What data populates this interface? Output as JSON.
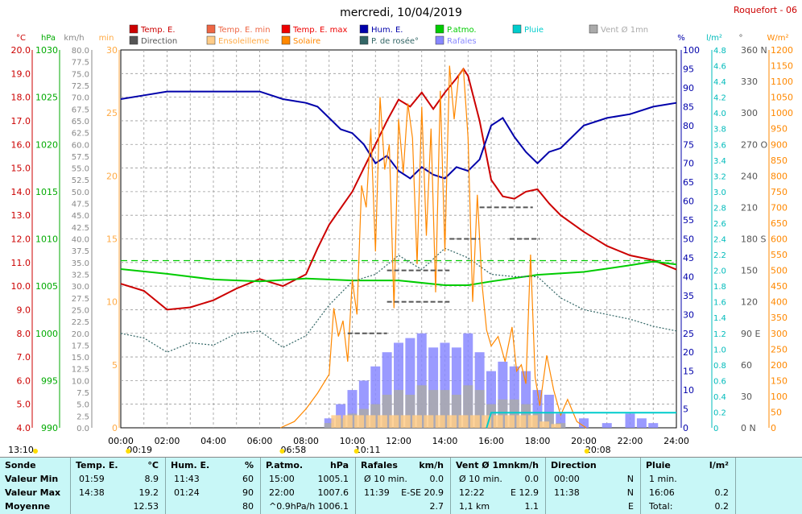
{
  "title": "mercredi, 10/04/2019",
  "station": "Roquefort - 06",
  "legend": [
    {
      "label": "Temp. E.",
      "color": "#cc0000"
    },
    {
      "label": "Temp. E. min",
      "color": "#ee6644"
    },
    {
      "label": "Temp. E. max",
      "color": "#ee0000"
    },
    {
      "label": "Hum. E.",
      "color": "#0000aa"
    },
    {
      "label": "P.atmo.",
      "color": "#00cc00"
    },
    {
      "label": "Pluie",
      "color": "#00cccc"
    },
    {
      "label": "Vent Ø 1mn",
      "color": "#aaaaaa"
    },
    {
      "label": "Direction",
      "color": "#555555"
    },
    {
      "label": "Ensoleilleme",
      "color": "#ffcc88"
    },
    {
      "label": "Solaire",
      "color": "#ff8800"
    },
    {
      "label": "P. de rosée°",
      "color": "#336666"
    },
    {
      "label": "Rafales",
      "color": "#8888ff"
    }
  ],
  "axes": {
    "temp": {
      "unit": "°C",
      "ticks": [
        "20.0",
        "19.0",
        "18.0",
        "17.0",
        "16.0",
        "15.0",
        "14.0",
        "13.0",
        "12.0",
        "11.0",
        "10.0",
        "9.0",
        "8.0",
        "7.0",
        "6.0",
        "5.0",
        "4.0"
      ],
      "color": "#cc0000"
    },
    "press": {
      "unit": "hPa",
      "ticks": [
        "1030",
        "1025",
        "1020",
        "1015",
        "1010",
        "1005",
        "1000",
        "995",
        "990"
      ],
      "color": "#00aa00"
    },
    "wind": {
      "unit": "km/h",
      "ticks": [
        "80.0",
        "77.5",
        "75.0",
        "72.5",
        "70.0",
        "67.5",
        "65.0",
        "62.5",
        "60.0",
        "57.5",
        "55.0",
        "52.5",
        "50.0",
        "47.5",
        "45.0",
        "42.5",
        "40.0",
        "37.5",
        "35.0",
        "32.5",
        "30.0",
        "27.5",
        "25.0",
        "22.5",
        "20.0",
        "17.5",
        "15.0",
        "12.5",
        "10.0",
        "7.5",
        "5.0",
        "2.5",
        "0.0"
      ],
      "color": "#888888"
    },
    "min": {
      "unit": "min",
      "ticks": [
        "30",
        "25",
        "20",
        "15",
        "10",
        "5",
        "0"
      ],
      "color": "#ffaa44"
    },
    "hum": {
      "unit": "%",
      "ticks": [
        "100",
        "95",
        "90",
        "85",
        "80",
        "75",
        "70",
        "65",
        "60",
        "55",
        "50",
        "45",
        "40",
        "35",
        "30",
        "25",
        "20",
        "15",
        "10",
        "5",
        "0"
      ],
      "color": "#0000aa"
    },
    "rain": {
      "unit": "l/m²",
      "ticks": [
        "4.8",
        "4.6",
        "4.4",
        "4.2",
        "4.0",
        "3.8",
        "3.6",
        "3.4",
        "3.2",
        "3.0",
        "2.8",
        "2.6",
        "2.4",
        "2.2",
        "2.0",
        "1.8",
        "1.6",
        "1.4",
        "1.2",
        "1.0",
        "0.8",
        "0.6",
        "0.4",
        "0.2",
        "0"
      ],
      "color": "#00bbbb"
    },
    "dir": {
      "unit": "°",
      "ticks": [
        "360 N",
        "330",
        "300",
        "270 O",
        "240",
        "210",
        "180 S",
        "150",
        "120",
        "90 E",
        "60",
        "30",
        "0 N"
      ],
      "color": "#555555"
    },
    "solar": {
      "unit": "W/m²",
      "ticks": [
        "1200",
        "1150",
        "1100",
        "1050",
        "1000",
        "950",
        "900",
        "850",
        "800",
        "750",
        "700",
        "650",
        "600",
        "550",
        "500",
        "450",
        "400",
        "350",
        "300",
        "250",
        "200",
        "150",
        "100",
        "50",
        "0"
      ],
      "color": "#ff8800"
    }
  },
  "time_labels": [
    "00:00",
    "02:00",
    "04:00",
    "06:00",
    "08:00",
    "10:00",
    "12:00",
    "14:00",
    "16:00",
    "18:00",
    "20:00",
    "22:00",
    "24:00"
  ],
  "time_marks": [
    {
      "label": "13:10",
      "hour": -1.2
    },
    {
      "label": "00:19",
      "hour": 0.32
    },
    {
      "label": "06:58",
      "hour": 6.97
    },
    {
      "label": "10:11",
      "hour": 10.18
    },
    {
      "label": "20:08",
      "hour": 20.13
    }
  ],
  "chart_data": {
    "type": "line",
    "x_unit": "hour",
    "xlim": [
      0,
      24
    ],
    "series": [
      {
        "name": "Temp. E.",
        "axis": "temp",
        "color": "#cc0000",
        "x": [
          0,
          1,
          2,
          3,
          4,
          5,
          6,
          7,
          8,
          8.5,
          9,
          9.5,
          10,
          10.5,
          11,
          11.5,
          12,
          12.5,
          13,
          13.5,
          14,
          14.5,
          14.8,
          15,
          15.5,
          16,
          16.5,
          17,
          17.5,
          18,
          18.5,
          19,
          20,
          21,
          22,
          23,
          24
        ],
        "y": [
          10.1,
          9.8,
          9.0,
          9.1,
          9.4,
          9.9,
          10.3,
          10.0,
          10.5,
          11.6,
          12.6,
          13.3,
          14.0,
          15.0,
          16.0,
          17.0,
          17.9,
          17.6,
          18.2,
          17.5,
          18.2,
          18.8,
          19.2,
          18.9,
          17.0,
          14.5,
          13.8,
          13.7,
          14.0,
          14.1,
          13.5,
          13.0,
          12.3,
          11.7,
          11.3,
          11.1,
          10.7
        ]
      },
      {
        "name": "Hum. E.",
        "axis": "hum",
        "color": "#0000aa",
        "x": [
          0,
          1,
          2,
          3,
          4,
          5,
          6,
          7,
          8,
          8.5,
          9,
          9.5,
          10,
          10.5,
          11,
          11.5,
          12,
          12.5,
          13,
          13.5,
          14,
          14.5,
          15,
          15.5,
          16,
          16.5,
          17,
          17.5,
          18,
          18.5,
          19,
          20,
          21,
          22,
          23,
          24
        ],
        "y": [
          87,
          88,
          89,
          89,
          89,
          89,
          89,
          87,
          86,
          85,
          82,
          79,
          78,
          75,
          70,
          72,
          68,
          66,
          69,
          67,
          66,
          69,
          68,
          71,
          80,
          82,
          77,
          73,
          70,
          73,
          74,
          80,
          82,
          83,
          85,
          86
        ]
      },
      {
        "name": "P.atmo.",
        "axis": "press",
        "color": "#00cc00",
        "x": [
          0,
          2,
          4,
          6,
          8,
          10,
          12,
          14,
          15,
          16,
          18,
          20,
          22,
          23,
          24
        ],
        "y": [
          1006.8,
          1006.3,
          1005.7,
          1005.5,
          1005.8,
          1005.6,
          1005.6,
          1005.1,
          1005.1,
          1005.5,
          1006.2,
          1006.5,
          1007.2,
          1007.6,
          1007.3
        ]
      },
      {
        "name": "P. de rosée°",
        "axis": "temp",
        "color": "#336666",
        "dotted": true,
        "x": [
          0,
          1,
          2,
          3,
          4,
          5,
          6,
          7,
          8,
          9,
          10,
          11,
          12,
          13,
          14,
          15,
          16,
          17,
          18,
          19,
          20,
          21,
          22,
          23,
          24
        ],
        "y": [
          8.0,
          7.8,
          7.2,
          7.6,
          7.5,
          8.0,
          8.1,
          7.4,
          7.9,
          9.2,
          10.2,
          10.5,
          11.3,
          10.7,
          11.6,
          11.2,
          10.5,
          10.4,
          10.4,
          9.5,
          9.0,
          8.8,
          8.6,
          8.3,
          8.1
        ]
      },
      {
        "name": "Solaire",
        "axis": "solar",
        "color": "#ff8800",
        "x": [
          6.9,
          7.5,
          8,
          8.5,
          9,
          9.2,
          9.4,
          9.6,
          9.8,
          10,
          10.2,
          10.4,
          10.6,
          10.8,
          11,
          11.2,
          11.4,
          11.6,
          11.8,
          12,
          12.2,
          12.4,
          12.6,
          12.8,
          13,
          13.2,
          13.4,
          13.6,
          13.8,
          14,
          14.2,
          14.4,
          14.6,
          14.8,
          15,
          15.2,
          15.4,
          15.6,
          15.8,
          16,
          16.3,
          16.6,
          16.9,
          17.1,
          17.3,
          17.5,
          17.7,
          17.9,
          18.1,
          18.4,
          18.7,
          19,
          19.3,
          19.7,
          20.1
        ],
        "y": [
          0,
          20,
          60,
          110,
          170,
          380,
          290,
          340,
          210,
          470,
          360,
          770,
          700,
          950,
          560,
          1050,
          820,
          900,
          380,
          980,
          810,
          1030,
          920,
          520,
          1020,
          610,
          950,
          430,
          1070,
          560,
          1150,
          980,
          1120,
          1140,
          920,
          400,
          740,
          460,
          310,
          260,
          290,
          210,
          320,
          180,
          200,
          140,
          550,
          160,
          70,
          230,
          120,
          40,
          90,
          20,
          0
        ]
      },
      {
        "name": "Rafales",
        "axis": "wind",
        "color": "#8888ff",
        "bars": true,
        "x": [
          9.0,
          9.5,
          10.0,
          10.5,
          11.0,
          11.5,
          12.0,
          12.5,
          13.0,
          13.5,
          14.0,
          14.5,
          15.0,
          15.5,
          16.0,
          16.5,
          17.0,
          17.5,
          18.0,
          18.5,
          19.0,
          20.0,
          21.0,
          22.0,
          22.5,
          23.0
        ],
        "y": [
          2,
          5,
          8,
          10,
          13,
          16,
          18,
          19,
          20,
          17,
          18,
          17,
          20,
          16,
          12,
          14,
          13,
          12,
          8,
          7,
          3,
          2,
          1,
          3,
          2,
          1
        ]
      },
      {
        "name": "Vent Ø 1mn",
        "axis": "wind",
        "color": "#aaaaaa",
        "bars": true,
        "x": [
          9.0,
          9.5,
          10.0,
          10.5,
          11.0,
          11.5,
          12.0,
          12.5,
          13.0,
          13.5,
          14.0,
          14.5,
          15.0,
          15.5,
          16.0,
          16.5,
          17.0,
          17.5,
          18.0,
          18.5,
          19.0
        ],
        "y": [
          1,
          2,
          3,
          4,
          5,
          7,
          8,
          7,
          9,
          8,
          8,
          7,
          9,
          8,
          5,
          6,
          6,
          5,
          3,
          3,
          1
        ]
      },
      {
        "name": "Ensoleilleme",
        "axis": "min",
        "color": "#ffcc88",
        "bars": true,
        "x": [
          9.3,
          9.8,
          10.3,
          10.8,
          11.3,
          11.8,
          12.3,
          12.8,
          13.3,
          13.8,
          14.3,
          14.8,
          15.3,
          15.8,
          16.3,
          16.8,
          17.3,
          17.8,
          18.3,
          18.8
        ],
        "y": [
          1,
          1,
          1,
          1,
          1,
          1,
          1,
          1,
          1,
          1,
          1,
          1,
          1,
          1,
          1,
          1,
          1,
          1,
          0.5,
          0.3
        ]
      },
      {
        "name": "Pluie",
        "axis": "rain",
        "color": "#00cccc",
        "x": [
          15.8,
          16.0,
          24.0
        ],
        "y": [
          0,
          0.2,
          0.2
        ]
      },
      {
        "name": "Direction",
        "axis": "dir",
        "color": "#555555",
        "dashes": true,
        "x": [
          9.8,
          11.5,
          11.5,
          14.2,
          11.5,
          14.2,
          14.2,
          15.5,
          15.5,
          17.8,
          16.8,
          18.1
        ],
        "y": [
          90,
          90,
          120,
          120,
          150,
          150,
          180,
          180,
          210,
          210,
          180,
          180
        ]
      }
    ],
    "reference_line": {
      "axis": "press",
      "y": 1007.7,
      "color": "#00cc00"
    }
  },
  "footer": {
    "columns": [
      {
        "header": "Sonde",
        "unit": "",
        "rows": [
          [
            "Valeur Min"
          ],
          [
            "Valeur Max"
          ],
          [
            "Moyenne"
          ]
        ]
      },
      {
        "header": "Temp. E.",
        "unit": "°C",
        "rows": [
          [
            "01:59",
            "8.9"
          ],
          [
            "14:38",
            "19.2"
          ],
          [
            "",
            "12.53"
          ]
        ]
      },
      {
        "header": "Hum. E.",
        "unit": "%",
        "rows": [
          [
            "11:43",
            "60"
          ],
          [
            "01:24",
            "90"
          ],
          [
            "",
            "80"
          ]
        ]
      },
      {
        "header": "P.atmo.",
        "unit": "hPa",
        "rows": [
          [
            "15:00",
            "1005.1"
          ],
          [
            "22:00",
            "1007.6"
          ],
          [
            "^0.9hPa/h",
            "1006.1"
          ]
        ]
      },
      {
        "header": "Rafales",
        "unit": "km/h",
        "rows": [
          [
            "Ø 10 min.",
            "0.0"
          ],
          [
            "11:39",
            "E-SE 20.9"
          ],
          [
            "",
            "2.7"
          ]
        ]
      },
      {
        "header": "Vent Ø 1mn",
        "unit": "km/h",
        "rows": [
          [
            "Ø 10 min.",
            "0.0"
          ],
          [
            "12:22",
            "E 12.9"
          ],
          [
            "1,1 km",
            "1.1"
          ]
        ]
      },
      {
        "header": "Direction",
        "unit": "",
        "rows": [
          [
            "00:00",
            "N"
          ],
          [
            "11:38",
            "N"
          ],
          [
            "",
            "E"
          ]
        ]
      },
      {
        "header": "Pluie",
        "unit": "l/m²",
        "rows": [
          [
            "1 min.",
            ""
          ],
          [
            "16:06",
            "0.2"
          ],
          [
            "Total:",
            "0.2"
          ]
        ]
      }
    ]
  }
}
